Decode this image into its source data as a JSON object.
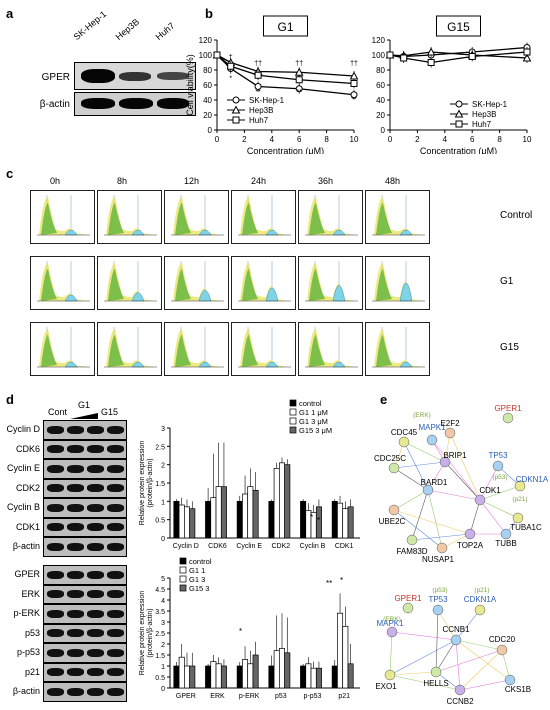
{
  "panels": {
    "a": "a",
    "b": "b",
    "c": "c",
    "d": "d",
    "e": "e"
  },
  "panel_a": {
    "lanes": [
      "SK-Hep-1",
      "Hep3B",
      "Huh7"
    ],
    "rows": [
      "GPER",
      "β-actin"
    ]
  },
  "chart_data": [
    {
      "type": "line",
      "title": "G1",
      "xlabel": "Concentration (μM)",
      "ylabel": "Cell viability(%)",
      "x": [
        0,
        1,
        3,
        6,
        10
      ],
      "xlim": [
        0,
        10
      ],
      "ylim": [
        0,
        120
      ],
      "xticks": [
        "0",
        "2",
        "4",
        "6",
        "8",
        "10"
      ],
      "yticks": [
        "0",
        "20",
        "40",
        "60",
        "80",
        "100",
        "120"
      ],
      "series": [
        {
          "name": "SK-Hep-1",
          "marker": "circle",
          "values": [
            100,
            82,
            58,
            55,
            47
          ]
        },
        {
          "name": "Hep3B",
          "marker": "triangle",
          "values": [
            100,
            90,
            78,
            77,
            72
          ]
        },
        {
          "name": "Huh7",
          "marker": "square",
          "values": [
            100,
            85,
            73,
            67,
            62
          ]
        }
      ],
      "annotations": [
        "†",
        "††",
        "††",
        "††",
        "*",
        "**",
        "**",
        "**"
      ]
    },
    {
      "type": "line",
      "title": "G15",
      "xlabel": "Concentration (μM)",
      "ylabel": "",
      "x": [
        0,
        1,
        3,
        6,
        10
      ],
      "xlim": [
        0,
        10
      ],
      "ylim": [
        0,
        120
      ],
      "xticks": [
        "0",
        "2",
        "4",
        "6",
        "8",
        "10"
      ],
      "yticks": [
        "0",
        "20",
        "40",
        "60",
        "80",
        "100",
        "120"
      ],
      "series": [
        {
          "name": "SK-Hep-1",
          "marker": "circle",
          "values": [
            100,
            98,
            100,
            104,
            110
          ]
        },
        {
          "name": "Hep3B",
          "marker": "triangle",
          "values": [
            100,
            99,
            104,
            100,
            96
          ]
        },
        {
          "name": "Huh7",
          "marker": "square",
          "values": [
            100,
            96,
            90,
            98,
            104
          ]
        }
      ]
    },
    {
      "type": "bar",
      "ylabel": "Relative protein expression (protein/β-actin)",
      "categories": [
        "Cyclin D",
        "CDK6",
        "Cyclin E",
        "CDK2",
        "Cyclin B",
        "CDK1"
      ],
      "ylim": [
        0,
        3
      ],
      "yticks": [
        "0",
        "0.5",
        "1",
        "1.5",
        "2",
        "2.5",
        "3"
      ],
      "series": [
        {
          "name": "control",
          "values": [
            1,
            1,
            1,
            1,
            1,
            1
          ]
        },
        {
          "name": "G1 1 μM",
          "values": [
            0.9,
            1.1,
            1.2,
            1.9,
            0.75,
            0.95
          ]
        },
        {
          "name": "G1 3 μM",
          "values": [
            0.85,
            1.4,
            1.4,
            2.05,
            0.7,
            0.8
          ]
        },
        {
          "name": "G15 3 μM",
          "values": [
            0.8,
            1.4,
            1.3,
            2.0,
            0.85,
            0.85
          ]
        }
      ],
      "errors": [
        0.2,
        1.2,
        0.5,
        0.15,
        0.2,
        0.2
      ],
      "annotations": [
        "*",
        "*"
      ]
    },
    {
      "type": "bar",
      "ylabel": "Relative protein expression (protein/β-actin)",
      "categories": [
        "GPER",
        "ERK",
        "p-ERK",
        "p53",
        "p-p53",
        "p21"
      ],
      "ylim": [
        0,
        5
      ],
      "yticks": [
        "0",
        "0.5",
        "1",
        "1.5",
        "2",
        "2.5",
        "3",
        "3.5",
        "4",
        "4.5",
        "5"
      ],
      "series": [
        {
          "name": "control",
          "values": [
            1,
            1,
            1,
            1,
            1,
            1
          ]
        },
        {
          "name": "G1 1",
          "values": [
            1.4,
            1.2,
            1.3,
            1.7,
            1.1,
            3.4
          ]
        },
        {
          "name": "G1 3",
          "values": [
            1.0,
            1.1,
            1.1,
            1.8,
            0.9,
            2.8
          ]
        },
        {
          "name": "G15 3",
          "values": [
            1.0,
            1.0,
            1.5,
            1.6,
            0.9,
            1.1
          ]
        }
      ],
      "errors": [
        0.6,
        0.3,
        0.6,
        1.6,
        0.3,
        0.9
      ],
      "annotations": [
        "*",
        "**",
        "*"
      ]
    }
  ],
  "panel_c": {
    "times": [
      "0h",
      "8h",
      "12h",
      "24h",
      "36h",
      "48h"
    ],
    "rows": [
      "Control",
      "G1",
      "G15"
    ]
  },
  "panel_d": {
    "lanes": [
      "Cont",
      "G1",
      "G15"
    ],
    "rows_top": [
      "Cyclin D",
      "CDK6",
      "Cyclin E",
      "CDK2",
      "Cyclin B",
      "CDK1",
      "β-actin"
    ],
    "rows_bottom": [
      "GPER",
      "ERK",
      "p-ERK",
      "p53",
      "p-p53",
      "p21",
      "β-actin"
    ]
  },
  "panel_e": {
    "top_nodes": [
      "GPER1",
      "(ERK)",
      "MAPK1",
      "E2F2",
      "CDC45",
      "CDC25C",
      "BRIP1",
      "TP53",
      "(p53)",
      "CDKN1A",
      "(p21)",
      "CDK1",
      "BARD1",
      "UBE2C",
      "TUBA1C",
      "FAM83D",
      "TOP2A",
      "TUBB",
      "NUSAP1"
    ],
    "bottom_nodes": [
      "GPER1",
      "(p53)",
      "TP53",
      "(p21)",
      "CDKN1A",
      "(ERK)",
      "MAPK1",
      "CCNB1",
      "CDC20",
      "EXO1",
      "HELLS",
      "CCNB2",
      "CKS1B"
    ]
  },
  "colors": {
    "cyan": "#7fd3e6",
    "green": "#7cbf4a",
    "yellow": "#e8e25a",
    "red_label": "#c0392b",
    "blue_label": "#2c5fb3",
    "green_label": "#7ba33a"
  }
}
